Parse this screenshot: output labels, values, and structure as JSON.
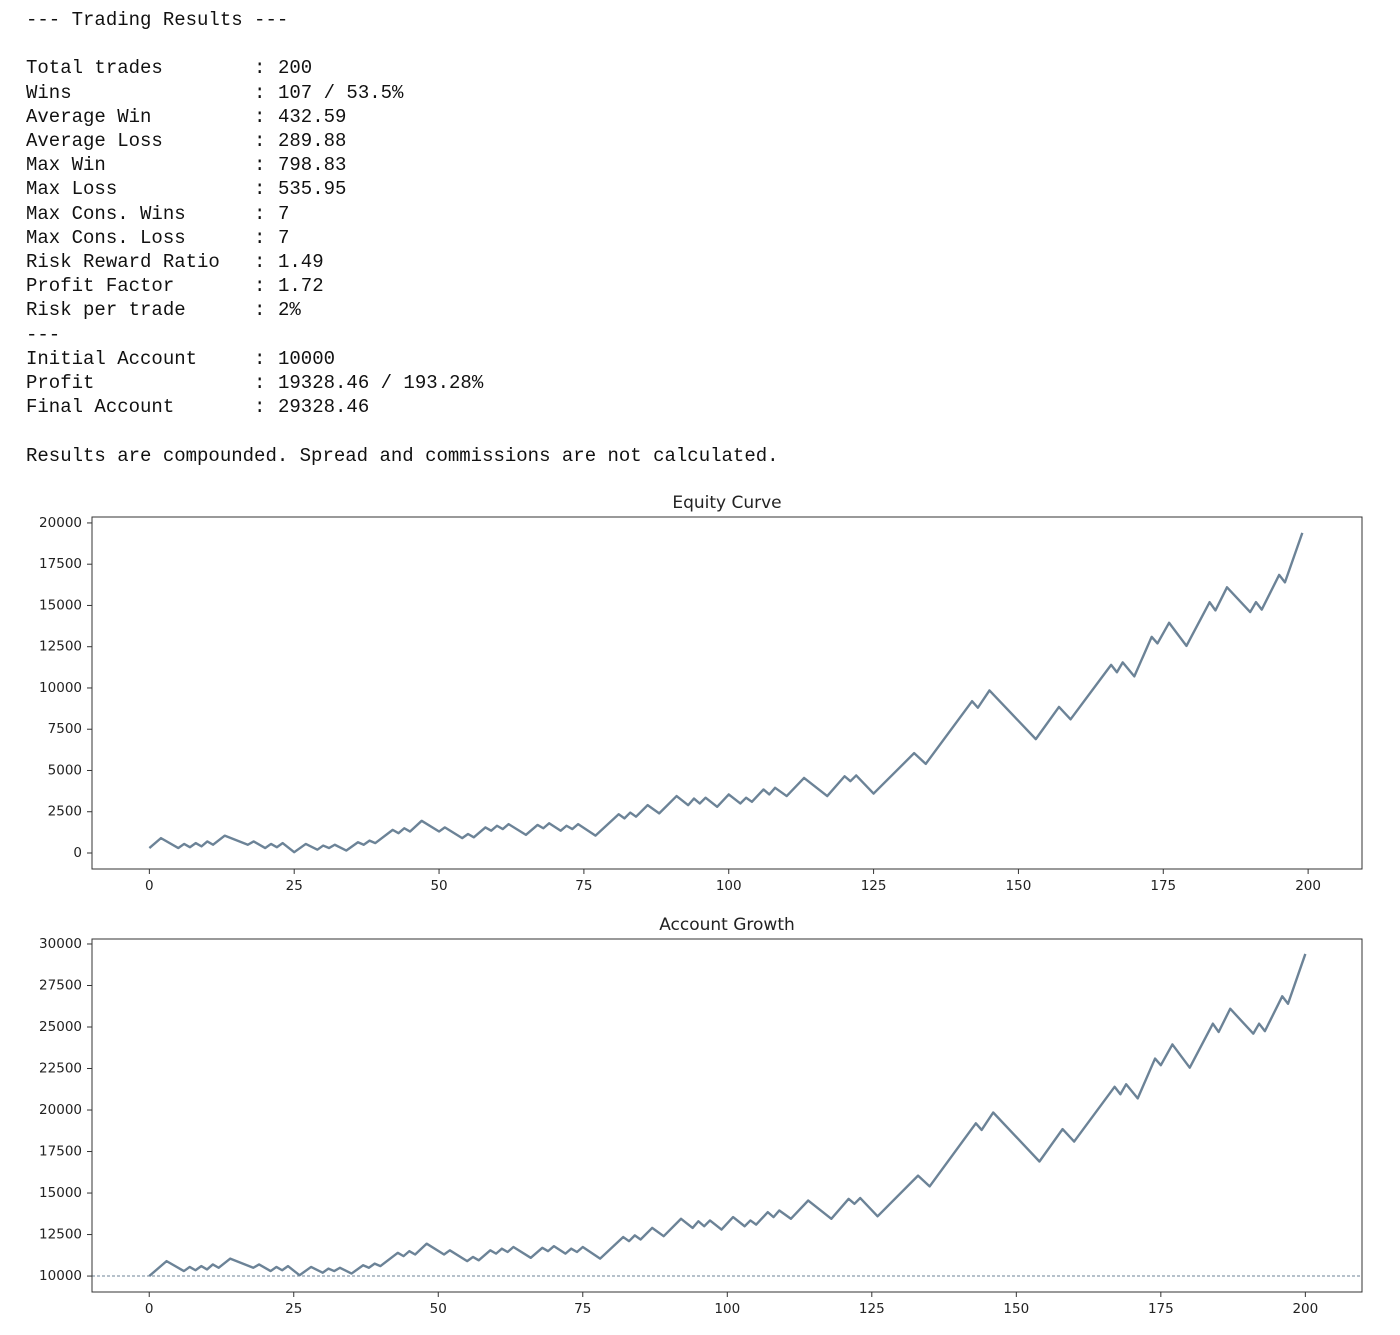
{
  "report": {
    "title": "--- Trading Results ---",
    "rows": [
      [
        "Total trades",
        "200"
      ],
      [
        "Wins",
        "107 / 53.5%"
      ],
      [
        "Average Win",
        "432.59"
      ],
      [
        "Average Loss",
        "289.88"
      ],
      [
        "Max Win",
        "798.83"
      ],
      [
        "Max Loss",
        "535.95"
      ],
      [
        "Max Cons. Wins",
        "7"
      ],
      [
        "Max Cons. Loss",
        "7"
      ],
      [
        "Risk Reward Ratio",
        "1.49"
      ],
      [
        "Profit Factor",
        "1.72"
      ],
      [
        "Risk per trade",
        "2%"
      ]
    ],
    "separator": "---",
    "account_rows": [
      [
        "Initial Account",
        "10000"
      ],
      [
        "Profit",
        "19328.46 / 193.28%"
      ],
      [
        "Final Account",
        "29328.46"
      ]
    ],
    "note": "Results are compounded. Spread and commissions are not calculated."
  },
  "chart_data": [
    {
      "type": "line",
      "title": "Equity Curve",
      "color": "#6c8397",
      "x": [
        0,
        2,
        5,
        6,
        7,
        8,
        9,
        10,
        11,
        13,
        17,
        18,
        20,
        21,
        22,
        23,
        25,
        27,
        29,
        30,
        31,
        32,
        34,
        36,
        37,
        38,
        39,
        42,
        43,
        44,
        45,
        47,
        50,
        51,
        54,
        55,
        56,
        58,
        59,
        60,
        61,
        62,
        65,
        67,
        68,
        69,
        71,
        72,
        73,
        74,
        77,
        81,
        82,
        83,
        84,
        86,
        88,
        91,
        93,
        94,
        95,
        96,
        98,
        100,
        102,
        103,
        104,
        106,
        107,
        108,
        110,
        113,
        117,
        120,
        121,
        122,
        125,
        132,
        134,
        142,
        143,
        145,
        153,
        157,
        159,
        166,
        167,
        168,
        170,
        173,
        174,
        176,
        179,
        183,
        184,
        186,
        190,
        191,
        192,
        195,
        196,
        199
      ],
      "values": [
        300,
        900,
        300,
        550,
        350,
        600,
        400,
        700,
        500,
        1050,
        500,
        700,
        300,
        550,
        350,
        600,
        50,
        550,
        200,
        450,
        300,
        500,
        150,
        650,
        500,
        750,
        600,
        1400,
        1200,
        1500,
        1300,
        1950,
        1300,
        1550,
        900,
        1150,
        950,
        1550,
        1350,
        1650,
        1450,
        1750,
        1100,
        1700,
        1500,
        1800,
        1350,
        1650,
        1450,
        1750,
        1050,
        2350,
        2100,
        2450,
        2200,
        2900,
        2400,
        3450,
        2900,
        3300,
        3000,
        3350,
        2800,
        3550,
        3000,
        3350,
        3100,
        3850,
        3550,
        3950,
        3450,
        4550,
        3450,
        4650,
        4350,
        4700,
        3600,
        6050,
        5400,
        9200,
        8800,
        9850,
        6900,
        8850,
        8100,
        11400,
        10950,
        11550,
        10700,
        13100,
        12700,
        13950,
        12550,
        15200,
        14700,
        16100,
        14600,
        15200,
        14750,
        16850,
        16400,
        19400
      ],
      "xlim": [
        -9.9,
        209.3
      ],
      "ylim": [
        -970,
        20360
      ],
      "xticks": [
        0,
        25,
        50,
        75,
        100,
        125,
        150,
        175,
        200
      ],
      "yticks": [
        0,
        2500,
        5000,
        7500,
        10000,
        12500,
        15000,
        17500,
        20000
      ]
    },
    {
      "type": "line",
      "title": "Account Growth",
      "color": "#6c8397",
      "x": [
        0,
        3,
        6,
        7,
        8,
        9,
        10,
        11,
        12,
        14,
        18,
        19,
        21,
        22,
        23,
        24,
        26,
        28,
        30,
        31,
        32,
        33,
        35,
        37,
        38,
        39,
        40,
        43,
        44,
        45,
        46,
        48,
        51,
        52,
        55,
        56,
        57,
        59,
        60,
        61,
        62,
        63,
        66,
        68,
        69,
        70,
        72,
        73,
        74,
        75,
        78,
        82,
        83,
        84,
        85,
        87,
        89,
        92,
        94,
        95,
        96,
        97,
        99,
        101,
        103,
        104,
        105,
        107,
        108,
        109,
        111,
        114,
        118,
        121,
        122,
        123,
        126,
        133,
        135,
        143,
        144,
        146,
        154,
        158,
        160,
        167,
        168,
        169,
        171,
        174,
        175,
        177,
        180,
        184,
        185,
        187,
        191,
        192,
        193,
        196,
        197,
        200
      ],
      "values": [
        10000,
        10900,
        10300,
        10550,
        10350,
        10600,
        10400,
        10700,
        10500,
        11050,
        10500,
        10700,
        10300,
        10550,
        10350,
        10600,
        10050,
        10550,
        10200,
        10450,
        10300,
        10500,
        10150,
        10650,
        10500,
        10750,
        10600,
        11400,
        11200,
        11500,
        11300,
        11950,
        11300,
        11550,
        10900,
        11150,
        10950,
        11550,
        11350,
        11650,
        11450,
        11750,
        11100,
        11700,
        11500,
        11800,
        11350,
        11650,
        11450,
        11750,
        11050,
        12350,
        12100,
        12450,
        12200,
        12900,
        12400,
        13450,
        12900,
        13300,
        13000,
        13350,
        12800,
        13550,
        13000,
        13350,
        13100,
        13850,
        13550,
        13950,
        13450,
        14550,
        13450,
        14650,
        14350,
        14700,
        13600,
        16050,
        15400,
        19200,
        18800,
        19850,
        16900,
        18850,
        18100,
        21400,
        20950,
        21550,
        20700,
        23100,
        22700,
        23950,
        22550,
        25200,
        24700,
        26100,
        24600,
        25200,
        24750,
        26850,
        26400,
        29400
      ],
      "xlim": [
        -9.9,
        209.8
      ],
      "ylim": [
        9040,
        30300
      ],
      "xticks": [
        0,
        25,
        50,
        75,
        100,
        125,
        150,
        175,
        200
      ],
      "yticks": [
        10000,
        12500,
        15000,
        17500,
        20000,
        22500,
        25000,
        27500,
        30000
      ],
      "hline": 10000
    }
  ]
}
